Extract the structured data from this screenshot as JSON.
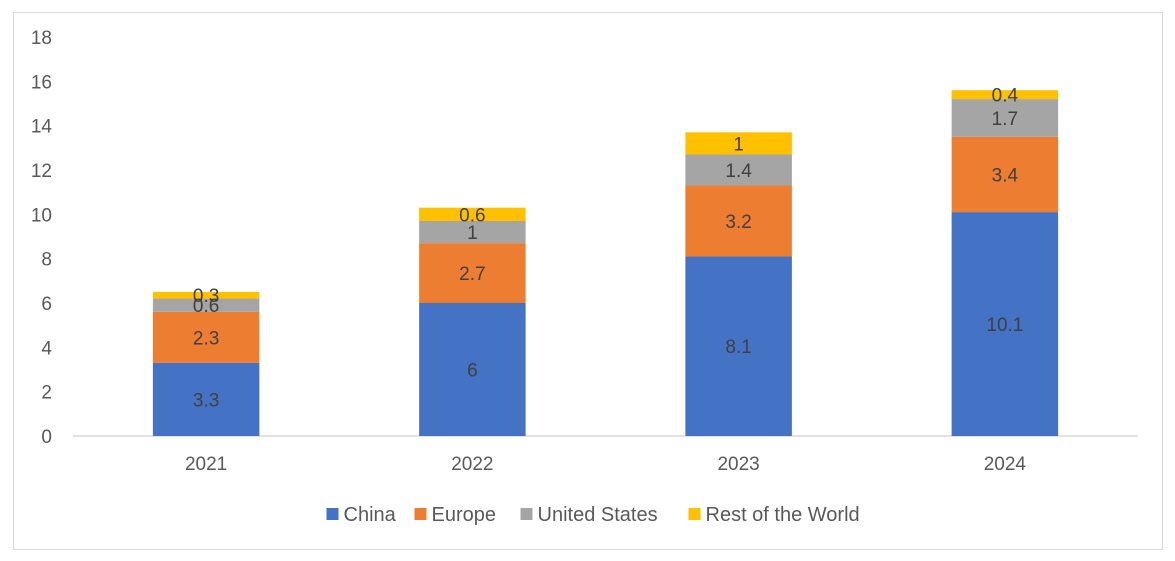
{
  "chart_data": {
    "type": "bar",
    "stacked": true,
    "categories": [
      "2021",
      "2022",
      "2023",
      "2024"
    ],
    "series": [
      {
        "name": "China",
        "color": "#4472C4",
        "values": [
          3.3,
          6,
          8.1,
          10.1
        ]
      },
      {
        "name": "Europe",
        "color": "#ED7D31",
        "values": [
          2.3,
          2.7,
          3.2,
          3.4
        ]
      },
      {
        "name": "United States",
        "color": "#A5A5A5",
        "values": [
          0.6,
          1,
          1.4,
          1.7
        ]
      },
      {
        "name": "Rest of the World",
        "color": "#FFC000",
        "values": [
          0.3,
          0.6,
          1,
          0.4
        ]
      }
    ],
    "ylim": [
      0,
      18
    ],
    "yticks": [
      "0",
      "2",
      "4",
      "6",
      "8",
      "10",
      "12",
      "14",
      "16",
      "18"
    ],
    "grid": false,
    "legend_position": "bottom",
    "data_labels": true
  }
}
